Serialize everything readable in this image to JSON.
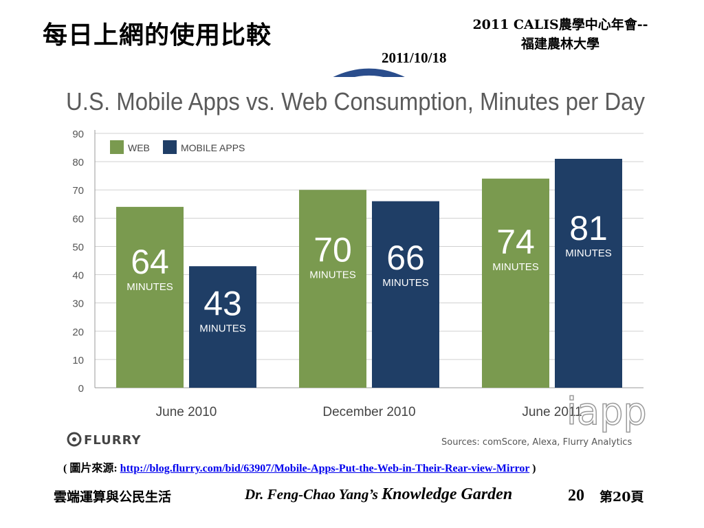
{
  "slide": {
    "title": "每日上網的使用比較",
    "event_line1": "2011 CALIS農學中心年會--",
    "event_line2": "福建農林大學",
    "date": "2011/10/18"
  },
  "source": {
    "prefix": "( 圖片來源: ",
    "url_text": "http://blog.flurry.com/bid/63907/Mobile-Apps-Put-the-Web-in-Their-Rear-view-Mirror",
    "suffix": " )"
  },
  "footer": {
    "left": "雲端運算與公民生活",
    "center_part1": "Dr. Feng-Chao Yang’s ",
    "center_part2": "Knowledge Garden",
    "page_number": "20",
    "page_label": "第20頁"
  },
  "colors": {
    "web": "#7a9a4f",
    "mobile_apps": "#1f3e66",
    "title_gray": "#5a5a5a",
    "grid": "#d0d0d0"
  },
  "chart_data": {
    "type": "bar",
    "title": "U.S. Mobile Apps vs. Web Consumption, Minutes per Day",
    "categories": [
      "June 2010",
      "December 2010",
      "June 2011"
    ],
    "series": [
      {
        "name": "WEB",
        "values": [
          64,
          70,
          74
        ],
        "labels": [
          "64",
          "70",
          "74"
        ]
      },
      {
        "name": "MOBILE APPS",
        "values": [
          43,
          66,
          81
        ],
        "labels": [
          "43",
          "66",
          "81"
        ]
      }
    ],
    "unit_label": "MINUTES",
    "yticks": [
      0,
      10,
      20,
      30,
      40,
      50,
      60,
      70,
      80,
      90
    ],
    "ylim": [
      0,
      90
    ],
    "grid": true,
    "legend_position": "top-left",
    "brand": "FLURRY",
    "sources_text": "Sources: comScore, Alexa, Flurry Analytics",
    "watermark": "iapp"
  }
}
